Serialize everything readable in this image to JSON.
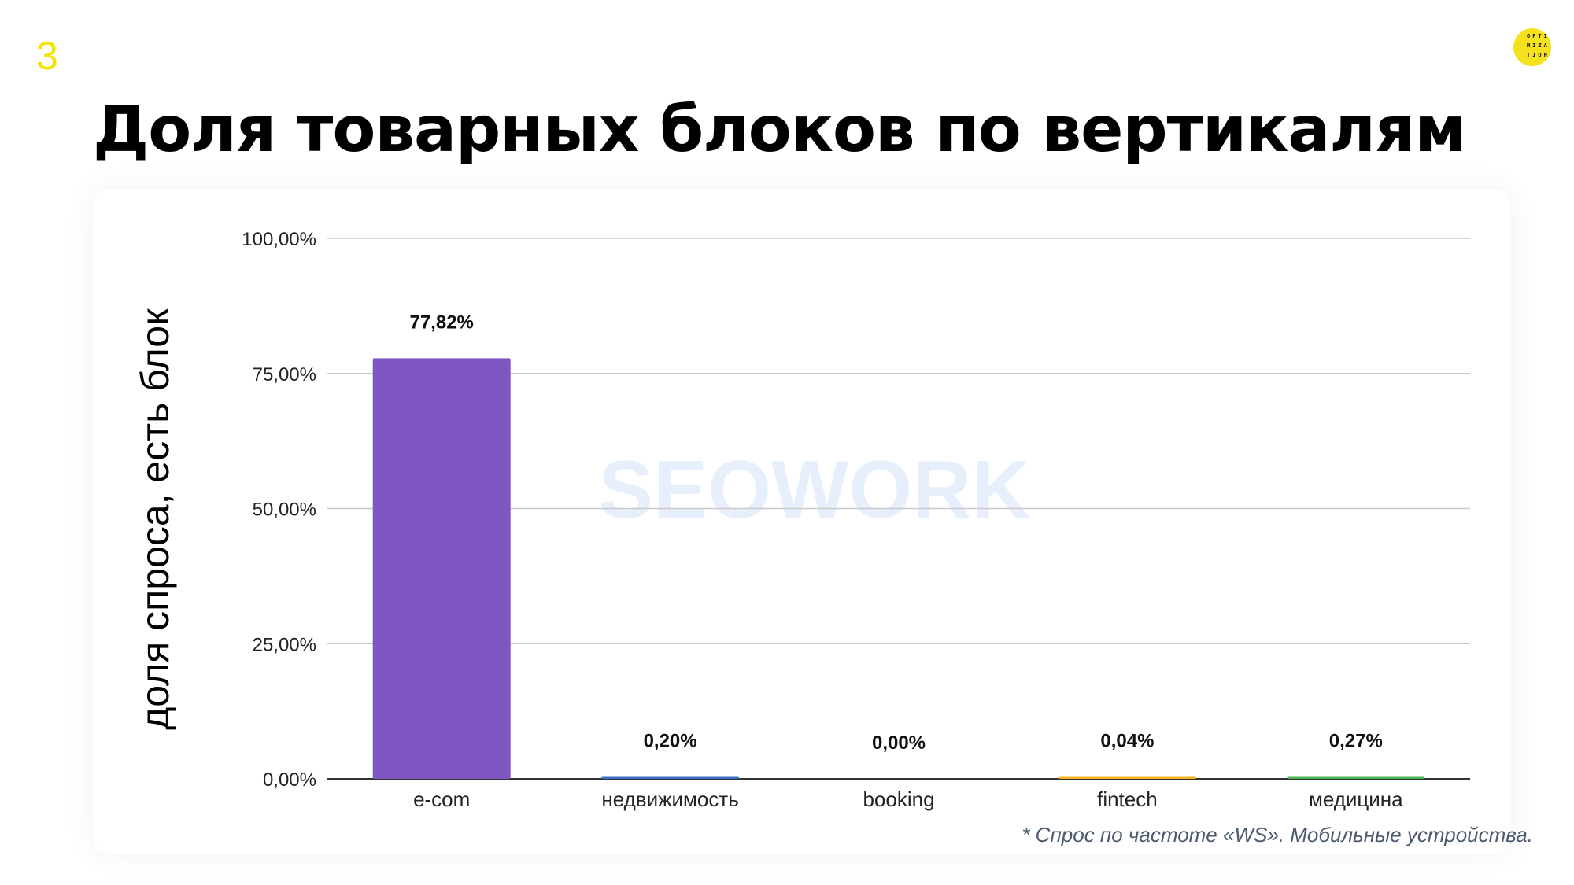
{
  "slide": {
    "number": "3",
    "logo_text": "OPTI MIZA TION",
    "title": "Доля товарных блоков по вертикалям",
    "footnote": "* Спрос по частоте «WS». Мобильные устройства.",
    "watermark": "SEOWORK"
  },
  "colors": {
    "slide_number": "#f2e600",
    "logo": "#f6e11d",
    "watermark": "#e6effb"
  },
  "chart_data": {
    "type": "bar",
    "ylabel": "доля спроса, есть блок",
    "xlabel": "",
    "ylim": [
      0,
      100
    ],
    "ytick_values": [
      0,
      25,
      50,
      75,
      100
    ],
    "yticks": [
      "0,00%",
      "25,00%",
      "50,00%",
      "75,00%",
      "100,00%"
    ],
    "grid": true,
    "categories": [
      "e-com",
      "недвижимость",
      "booking",
      "fintech",
      "медицина"
    ],
    "values": [
      77.82,
      0.2,
      0.0,
      0.04,
      0.27
    ],
    "data_labels": [
      "77,82%",
      "0,20%",
      "0,00%",
      "0,04%",
      "0,27%"
    ],
    "bar_colors": [
      "#7e57c2",
      "#3b6fc2",
      "#d6462f",
      "#f2b01e",
      "#4caf50"
    ]
  }
}
